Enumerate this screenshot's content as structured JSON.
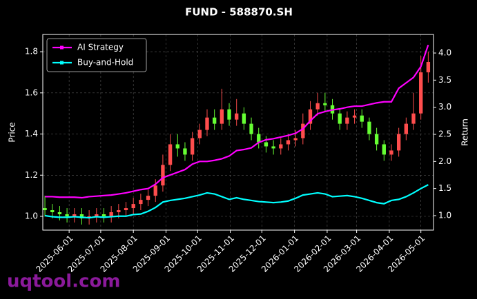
{
  "chart_data": {
    "type": "candlestick",
    "title": "FUND - 588870.SH",
    "x": [
      "2025-05-09",
      "2025-05-16",
      "2025-05-23",
      "2025-05-30",
      "2025-06-06",
      "2025-06-13",
      "2025-06-20",
      "2025-06-27",
      "2025-07-04",
      "2025-07-11",
      "2025-07-18",
      "2025-07-25",
      "2025-08-01",
      "2025-08-08",
      "2025-08-15",
      "2025-08-22",
      "2025-08-29",
      "2025-09-05",
      "2025-09-12",
      "2025-09-19",
      "2025-09-26",
      "2025-10-03",
      "2025-10-10",
      "2025-10-17",
      "2025-10-24",
      "2025-10-31",
      "2025-11-07",
      "2025-11-14",
      "2025-11-21",
      "2025-11-28",
      "2025-12-05",
      "2025-12-12",
      "2025-12-19",
      "2025-12-26",
      "2026-01-02",
      "2026-01-09",
      "2026-01-16",
      "2026-01-23",
      "2026-01-30",
      "2026-02-06",
      "2026-02-13",
      "2026-02-20",
      "2026-02-27",
      "2026-03-06",
      "2026-03-13",
      "2026-03-20",
      "2026-03-27",
      "2026-04-03",
      "2026-04-10",
      "2026-04-17",
      "2026-04-24",
      "2026-05-01",
      "2026-05-08"
    ],
    "open": [
      1.04,
      1.03,
      1.02,
      1.01,
      1.0,
      1.01,
      0.99,
      1.0,
      1.01,
      1.0,
      1.02,
      1.03,
      1.04,
      1.06,
      1.08,
      1.1,
      1.15,
      1.25,
      1.35,
      1.33,
      1.3,
      1.38,
      1.42,
      1.48,
      1.45,
      1.52,
      1.47,
      1.5,
      1.45,
      1.4,
      1.36,
      1.34,
      1.33,
      1.35,
      1.37,
      1.38,
      1.45,
      1.52,
      1.55,
      1.54,
      1.5,
      1.45,
      1.48,
      1.49,
      1.46,
      1.4,
      1.35,
      1.3,
      1.32,
      1.4,
      1.45,
      1.5,
      1.7
    ],
    "high": [
      1.1,
      1.06,
      1.05,
      1.04,
      1.04,
      1.04,
      1.03,
      1.04,
      1.04,
      1.05,
      1.06,
      1.07,
      1.09,
      1.11,
      1.13,
      1.18,
      1.3,
      1.4,
      1.4,
      1.36,
      1.41,
      1.45,
      1.52,
      1.52,
      1.62,
      1.55,
      1.57,
      1.53,
      1.48,
      1.43,
      1.39,
      1.37,
      1.38,
      1.4,
      1.42,
      1.5,
      1.56,
      1.6,
      1.6,
      1.57,
      1.52,
      1.51,
      1.52,
      1.52,
      1.48,
      1.43,
      1.37,
      1.35,
      1.43,
      1.48,
      1.6,
      1.78,
      1.8
    ],
    "low": [
      1.0,
      0.99,
      0.98,
      0.97,
      0.97,
      0.96,
      0.96,
      0.97,
      0.97,
      0.97,
      0.99,
      1.0,
      1.01,
      1.03,
      1.05,
      1.07,
      1.12,
      1.22,
      1.29,
      1.27,
      1.27,
      1.35,
      1.39,
      1.42,
      1.42,
      1.44,
      1.44,
      1.42,
      1.37,
      1.33,
      1.31,
      1.3,
      1.3,
      1.32,
      1.34,
      1.35,
      1.42,
      1.49,
      1.51,
      1.47,
      1.42,
      1.42,
      1.45,
      1.43,
      1.37,
      1.32,
      1.27,
      1.27,
      1.29,
      1.37,
      1.42,
      1.47,
      1.65
    ],
    "close": [
      1.03,
      1.02,
      1.01,
      1.0,
      1.01,
      0.99,
      1.0,
      1.01,
      1.0,
      1.02,
      1.03,
      1.04,
      1.06,
      1.08,
      1.1,
      1.15,
      1.25,
      1.35,
      1.33,
      1.3,
      1.38,
      1.42,
      1.48,
      1.45,
      1.52,
      1.47,
      1.5,
      1.45,
      1.4,
      1.36,
      1.34,
      1.33,
      1.35,
      1.37,
      1.38,
      1.45,
      1.52,
      1.55,
      1.54,
      1.5,
      1.45,
      1.48,
      1.49,
      1.46,
      1.4,
      1.35,
      1.3,
      1.32,
      1.4,
      1.45,
      1.5,
      1.7,
      1.75
    ],
    "up_color": "#ff4d4d",
    "down_color": "#66ff33",
    "series": [
      {
        "name": "AI Strategy",
        "color": "#ff00ff",
        "axis": "y2",
        "values": [
          1.35,
          1.35,
          1.34,
          1.34,
          1.34,
          1.33,
          1.35,
          1.36,
          1.37,
          1.38,
          1.4,
          1.42,
          1.45,
          1.48,
          1.5,
          1.58,
          1.7,
          1.75,
          1.8,
          1.85,
          1.95,
          2.0,
          2.0,
          2.02,
          2.05,
          2.1,
          2.2,
          2.22,
          2.25,
          2.35,
          2.4,
          2.42,
          2.45,
          2.48,
          2.52,
          2.6,
          2.75,
          2.88,
          2.92,
          2.95,
          2.97,
          3.0,
          3.02,
          3.02,
          3.05,
          3.08,
          3.1,
          3.1,
          3.35,
          3.45,
          3.55,
          3.75,
          4.15
        ]
      },
      {
        "name": "Buy-and-Hold",
        "color": "#00ffff",
        "axis": "y2",
        "values": [
          1.0,
          0.98,
          0.97,
          0.97,
          0.98,
          0.97,
          0.96,
          0.98,
          0.97,
          0.98,
          0.99,
          0.99,
          1.02,
          1.03,
          1.08,
          1.15,
          1.25,
          1.28,
          1.3,
          1.32,
          1.35,
          1.38,
          1.42,
          1.4,
          1.35,
          1.3,
          1.33,
          1.3,
          1.28,
          1.26,
          1.25,
          1.24,
          1.25,
          1.27,
          1.32,
          1.38,
          1.4,
          1.42,
          1.4,
          1.35,
          1.36,
          1.37,
          1.35,
          1.32,
          1.28,
          1.24,
          1.22,
          1.28,
          1.3,
          1.35,
          1.42,
          1.5,
          1.57
        ]
      }
    ],
    "ylabel": "Price",
    "y2label": "Return",
    "xlim": [
      "2025-05-07",
      "2026-05-13"
    ],
    "xticks": [
      "2025-06-01",
      "2025-07-01",
      "2025-08-01",
      "2025-09-01",
      "2025-10-01",
      "2025-11-01",
      "2025-12-01",
      "2026-01-01",
      "2026-02-01",
      "2026-03-01",
      "2026-04-01",
      "2026-05-01"
    ],
    "ylim": [
      0.933,
      1.884
    ],
    "yticks": [
      {
        "value": 1,
        "label": "1.0"
      },
      1.2,
      1.4,
      1.6,
      1.8
    ],
    "y2lim": [
      0.733,
      4.343
    ],
    "y2ticks": [
      {
        "value": 1,
        "label": "1.0"
      },
      1.5,
      {
        "value": 2,
        "label": "2.0"
      },
      2.5,
      {
        "value": 3,
        "label": "3.0"
      },
      3.5,
      {
        "value": 4,
        "label": "4.0"
      }
    ],
    "grid": true,
    "legend": "upper left",
    "watermark": "uqtool.com"
  }
}
